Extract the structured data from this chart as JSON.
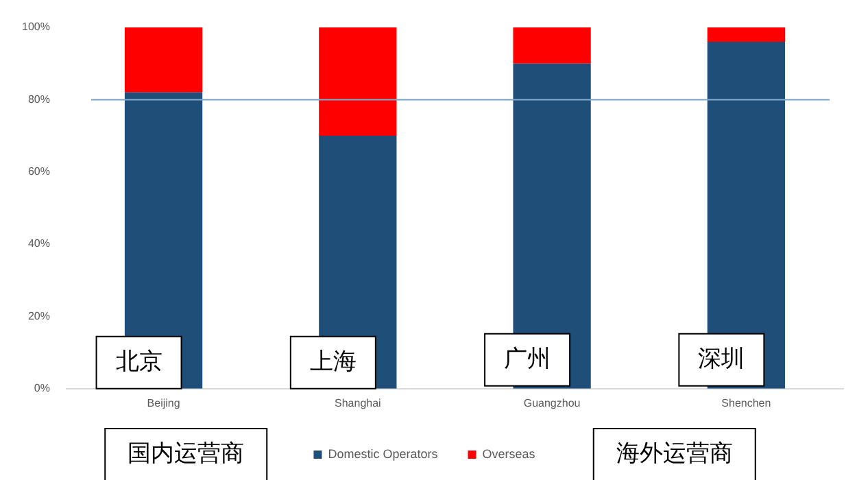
{
  "chart_data": {
    "type": "bar",
    "stacked": true,
    "categories": [
      "Beijing",
      "Shanghai",
      "Guangzhou",
      "Shenchen"
    ],
    "series": [
      {
        "name": "Domestic Operators",
        "color": "#1f4e79",
        "values": [
          82,
          70,
          90,
          96
        ]
      },
      {
        "name": "Overseas",
        "color": "#ff0000",
        "values": [
          18,
          30,
          10,
          4
        ]
      }
    ],
    "ylim": [
      0,
      100
    ],
    "yticks": [
      {
        "value": 0,
        "label": "0%"
      },
      {
        "value": 20,
        "label": "20%"
      },
      {
        "value": 40,
        "label": "40%"
      },
      {
        "value": 60,
        "label": "60%"
      },
      {
        "value": 80,
        "label": "80%"
      },
      {
        "value": 100,
        "label": "100%"
      }
    ],
    "grid": false,
    "legend": "bottom",
    "ref_lines": [
      {
        "axis": "y",
        "value": 80,
        "color": "#7fa7c9"
      }
    ],
    "annotations": [
      "北京",
      "上海",
      "广州",
      "深圳",
      "国内运营商",
      "海外运营商"
    ]
  }
}
